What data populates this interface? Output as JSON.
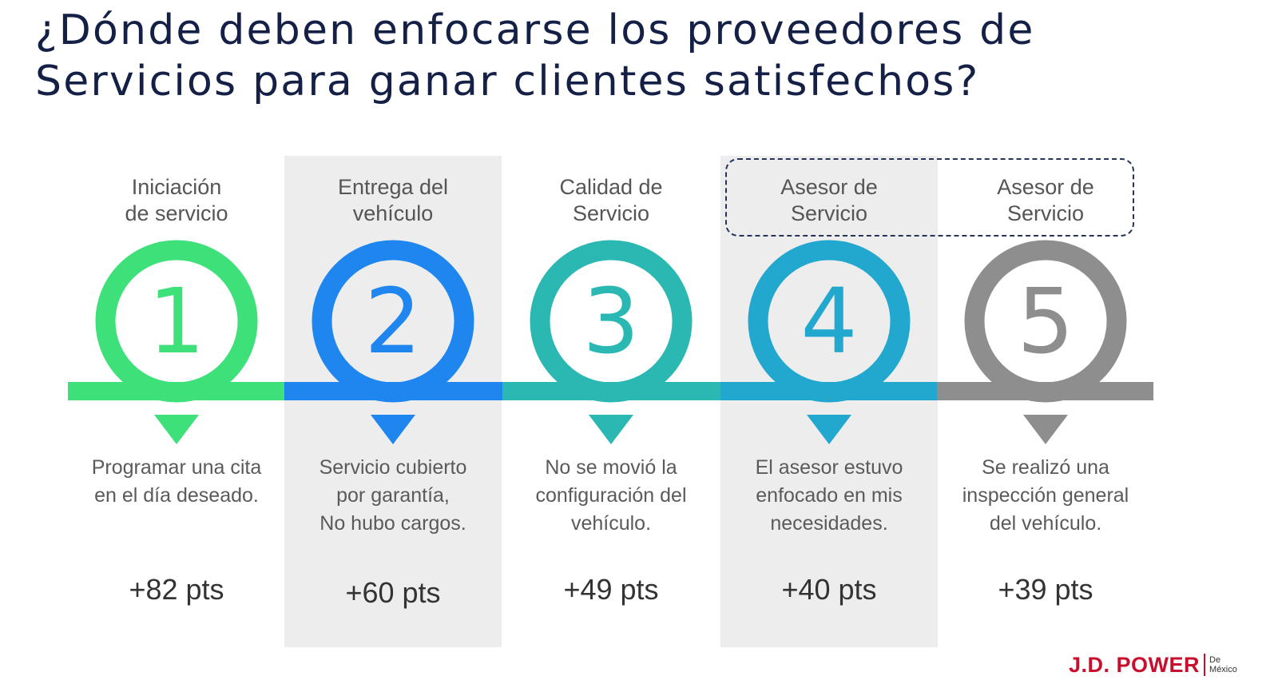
{
  "title": {
    "line1": "¿Dónde deben enfocarse los proveedores de",
    "line2": "Servicios para ganar clientes satisfechos?"
  },
  "steps": [
    {
      "number": "1",
      "label_line1": "Iniciación",
      "label_line2": "de servicio",
      "desc": [
        "Programar una cita",
        "en el día deseado.",
        ""
      ],
      "points": "+82 pts",
      "color": "#3ee07a",
      "shaded": false
    },
    {
      "number": "2",
      "label_line1": "Entrega del",
      "label_line2": "vehículo",
      "desc": [
        "Servicio cubierto",
        "por garantía,",
        "No hubo cargos."
      ],
      "points": "+60 pts",
      "color": "#1f86f0",
      "shaded": true
    },
    {
      "number": "3",
      "label_line1": "Calidad de",
      "label_line2": "Servicio",
      "desc": [
        "No se movió la",
        "configuración del",
        "vehículo."
      ],
      "points": "+49 pts",
      "color": "#2bb8b3",
      "shaded": false
    },
    {
      "number": "4",
      "label_line1": "Asesor de",
      "label_line2": "Servicio",
      "desc": [
        "El asesor estuvo",
        "enfocado en mis",
        "necesidades."
      ],
      "points": "+40 pts",
      "color": "#22a7cf",
      "shaded": true
    },
    {
      "number": "5",
      "label_line1": "Asesor de",
      "label_line2": "Servicio",
      "desc": [
        "Se realizó una",
        "inspección general",
        "del vehículo."
      ],
      "points": "+39 pts",
      "color": "#8e8e8e",
      "shaded": false
    }
  ],
  "logo": {
    "main": "J.D. POWER",
    "sub_line1": "De",
    "sub_line2": "México"
  }
}
